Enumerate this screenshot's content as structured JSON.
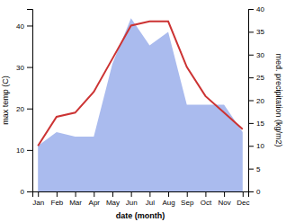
{
  "chart_data": {
    "type": "line",
    "xlabel": "date (month)",
    "ylabel": "max temp (C)",
    "y2label": "med. precipitation (kg/m2)",
    "categories": [
      "Jan",
      "Feb",
      "Mar",
      "Apr",
      "May",
      "Jun",
      "Jul",
      "Aug",
      "Sep",
      "Oct",
      "Nov",
      "Dec"
    ],
    "series": [
      {
        "type": "area",
        "axis": "y2",
        "color": "#aabbee",
        "values": [
          10,
          13,
          12,
          12,
          28,
          38,
          32,
          35,
          19,
          19,
          19,
          13
        ]
      },
      {
        "type": "line",
        "color": "#cc3333",
        "values": [
          11,
          18,
          19,
          24,
          32,
          40,
          41,
          41,
          30,
          23,
          19,
          15
        ]
      }
    ],
    "ylim": [
      0,
      44
    ],
    "yticks": [
      0,
      10,
      20,
      30,
      40
    ],
    "y2lim": [
      0,
      40
    ],
    "y2ticks": [
      0,
      5,
      10,
      15,
      20,
      25,
      30,
      35,
      40
    ],
    "grid": false
  }
}
